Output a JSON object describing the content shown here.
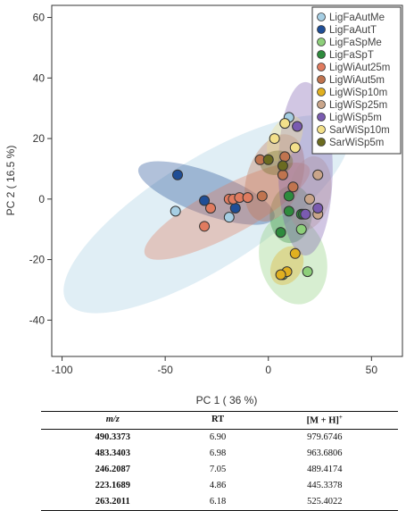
{
  "chart_data": {
    "type": "scatter",
    "xlabel": "PC 1 ( 36 %)",
    "ylabel": "PC 2 ( 16.5 %)",
    "xlim": [
      -105,
      65
    ],
    "ylim": [
      -52,
      64
    ],
    "x_ticks": [
      -100,
      -50,
      0,
      50
    ],
    "y_ticks": [
      -40,
      -20,
      0,
      20,
      40,
      60
    ],
    "grid": false,
    "legend_position": "top-right",
    "series": [
      {
        "name": "LigFaAutMe",
        "color": "#a6cee3",
        "points": [
          [
            -45,
            -4
          ],
          [
            -19,
            -6
          ],
          [
            10,
            27
          ]
        ],
        "ellipse": {
          "cx": -30,
          "cy": -5,
          "rx": 80,
          "ry": 18,
          "angle": 32
        }
      },
      {
        "name": "LigFaAutT",
        "color": "#1f4e96",
        "points": [
          [
            -44,
            8
          ],
          [
            -31,
            -0.5
          ],
          [
            -16,
            -3
          ]
        ],
        "ellipse": {
          "cx": -30,
          "cy": 2,
          "rx": 35,
          "ry": 7,
          "angle": -20
        }
      },
      {
        "name": "LigFaSpMe",
        "color": "#8dcf7a",
        "points": [
          [
            7,
            -25
          ],
          [
            19,
            -24
          ],
          [
            16,
            -10
          ]
        ],
        "ellipse": {
          "cx": 12,
          "cy": -20,
          "rx": 22,
          "ry": 11,
          "angle": -75
        }
      },
      {
        "name": "LigFaSpT",
        "color": "#2e8b3d",
        "points": [
          [
            6,
            -11
          ],
          [
            10,
            1
          ],
          [
            10,
            -4
          ],
          [
            16,
            -5
          ],
          [
            17,
            -5
          ]
        ],
        "ellipse": {
          "cx": 11,
          "cy": -5,
          "rx": 14,
          "ry": 7,
          "angle": 85
        }
      },
      {
        "name": "LigWiAut25m",
        "color": "#e07b5f",
        "points": [
          [
            -31,
            -9
          ],
          [
            -19,
            0
          ],
          [
            -17,
            0
          ],
          [
            -14,
            0.5
          ],
          [
            -10,
            0.5
          ],
          [
            -28,
            -3
          ]
        ],
        "ellipse": {
          "cx": -20,
          "cy": -4,
          "rx": 45,
          "ry": 8,
          "angle": 28
        }
      },
      {
        "name": "LigWiAut5m",
        "color": "#c0744f",
        "points": [
          [
            -4,
            13
          ],
          [
            -3,
            1
          ],
          [
            7,
            8
          ],
          [
            8,
            14
          ],
          [
            12,
            4
          ]
        ],
        "ellipse": {
          "cx": 3,
          "cy": 7,
          "rx": 22,
          "ry": 9,
          "angle": 70
        }
      },
      {
        "name": "LigWiSp10m",
        "color": "#e0b020",
        "points": [
          [
            9,
            -24
          ],
          [
            13,
            -18
          ],
          [
            6,
            -25
          ]
        ],
        "ellipse": {
          "cx": 9,
          "cy": -22,
          "rx": 10,
          "ry": 5,
          "angle": 60
        }
      },
      {
        "name": "LigWiSp25m",
        "color": "#c9a58a",
        "points": [
          [
            20,
            0
          ],
          [
            24,
            -5
          ],
          [
            24,
            8
          ]
        ],
        "ellipse": {
          "cx": 20,
          "cy": 2,
          "rx": 18,
          "ry": 7,
          "angle": 80
        }
      },
      {
        "name": "LigWiSp5m",
        "color": "#7a5bb0",
        "points": [
          [
            14,
            24
          ],
          [
            18,
            -5
          ],
          [
            24,
            -3
          ]
        ],
        "ellipse": {
          "cx": 18,
          "cy": 10,
          "rx": 42,
          "ry": 9,
          "angle": 90
        }
      },
      {
        "name": "SarWiSp10m",
        "color": "#f3e08a",
        "points": [
          [
            3,
            20
          ],
          [
            8,
            25
          ],
          [
            13,
            17
          ]
        ],
        "ellipse": {
          "cx": 8,
          "cy": 20,
          "rx": 12,
          "ry": 5,
          "angle": 60
        }
      },
      {
        "name": "SarWiSp5m",
        "color": "#6b6b20",
        "points": [
          [
            0,
            13
          ],
          [
            7,
            11
          ]
        ],
        "ellipse": {
          "cx": 4,
          "cy": 12,
          "rx": 8,
          "ry": 4,
          "angle": 10
        }
      }
    ]
  },
  "table": {
    "headers": {
      "mz": "m/z",
      "rt": "RT",
      "mh": "[M + H]",
      "mh_sup": "+"
    },
    "rows": [
      {
        "mz": "490.3373",
        "rt": "6.90",
        "mh": "979.6746"
      },
      {
        "mz": "483.3403",
        "rt": "6.98",
        "mh": "963.6806"
      },
      {
        "mz": "246.2087",
        "rt": "7.05",
        "mh": "489.4174"
      },
      {
        "mz": "223.1689",
        "rt": "4.86",
        "mh": "445.3378"
      },
      {
        "mz": "263.2011",
        "rt": "6.18",
        "mh": "525.4022"
      }
    ]
  }
}
